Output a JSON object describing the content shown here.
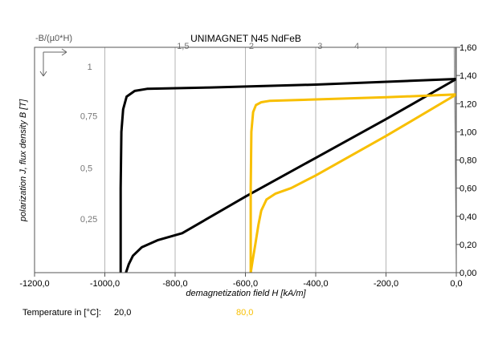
{
  "chart_data": {
    "type": "line",
    "title": "UNIMAGNET N45 NdFeB",
    "corner_label": "-B/(µ0*H)",
    "xlabel": "demagnetization field H [kA/m]",
    "ylabel": "polarization J, flux density B [T]",
    "xlim": [
      -1200,
      0
    ],
    "ylim": [
      0,
      1.6
    ],
    "x_ticks": [
      "-1200,0",
      "-1000,0",
      "-800,0",
      "-600,0",
      "-400,0",
      "-200,0",
      "0,0"
    ],
    "x_tick_values": [
      -1200,
      -1000,
      -800,
      -600,
      -400,
      -200,
      0
    ],
    "y_ticks": [
      "0,00",
      "0,20",
      "0,40",
      "0,60",
      "0,80",
      "1,00",
      "1,20",
      "1,40",
      "1,60"
    ],
    "y_tick_values": [
      0,
      0.2,
      0.4,
      0.6,
      0.8,
      1.0,
      1.2,
      1.4,
      1.6
    ],
    "vertical_grid_x": [
      -1000,
      -800,
      -600,
      -400,
      -200
    ],
    "grid": true,
    "permeance_lines": [
      {
        "label": "0,25",
        "slope": 0.25,
        "label_at": [
          -1070,
          0.36
        ]
      },
      {
        "label": "0,5",
        "slope": 0.5,
        "label_at": [
          -1070,
          0.72
        ]
      },
      {
        "label": "0,75",
        "slope": 0.75,
        "label_at": [
          -1070,
          1.09
        ]
      },
      {
        "label": "1",
        "slope": 1.0,
        "label_at": [
          -1050,
          1.44
        ]
      },
      {
        "label": "1,5",
        "slope": 1.5,
        "label_at": [
          -795,
          1.59
        ]
      },
      {
        "label": "2",
        "slope": 2.0,
        "label_at": [
          -590,
          1.59
        ]
      },
      {
        "label": "3",
        "slope": 3.0,
        "label_at": [
          -395,
          1.59
        ]
      },
      {
        "label": "4",
        "slope": 4.0,
        "label_at": [
          -290,
          1.59
        ]
      }
    ],
    "legend_label": "Temperature in [°C]:",
    "series": [
      {
        "name": "20,0",
        "color": "#000000",
        "J_curve": [
          [
            -955,
            0
          ],
          [
            -955,
            0.6
          ],
          [
            -953,
            1.0
          ],
          [
            -948,
            1.16
          ],
          [
            -938,
            1.25
          ],
          [
            -915,
            1.29
          ],
          [
            -880,
            1.305
          ],
          [
            -700,
            1.315
          ],
          [
            -400,
            1.335
          ],
          [
            0,
            1.375
          ]
        ],
        "B_curve": [
          [
            -940,
            0
          ],
          [
            -932,
            0.06
          ],
          [
            -920,
            0.12
          ],
          [
            -895,
            0.18
          ],
          [
            -850,
            0.23
          ],
          [
            -780,
            0.28
          ],
          [
            -600,
            0.54
          ],
          [
            -400,
            0.815
          ],
          [
            -200,
            1.09
          ],
          [
            0,
            1.375
          ]
        ]
      },
      {
        "name": "80,0",
        "color": "#f8bf00",
        "J_curve": [
          [
            -585,
            0
          ],
          [
            -585,
            0.6
          ],
          [
            -583,
            1.0
          ],
          [
            -578,
            1.14
          ],
          [
            -570,
            1.19
          ],
          [
            -555,
            1.21
          ],
          [
            -530,
            1.22
          ],
          [
            -400,
            1.23
          ],
          [
            -200,
            1.245
          ],
          [
            0,
            1.265
          ]
        ],
        "B_curve": [
          [
            -585,
            0
          ],
          [
            -580,
            0.08
          ],
          [
            -572,
            0.2
          ],
          [
            -563,
            0.34
          ],
          [
            -555,
            0.44
          ],
          [
            -540,
            0.52
          ],
          [
            -515,
            0.56
          ],
          [
            -470,
            0.6
          ],
          [
            -400,
            0.69
          ],
          [
            -200,
            0.97
          ],
          [
            0,
            1.265
          ]
        ]
      }
    ]
  }
}
